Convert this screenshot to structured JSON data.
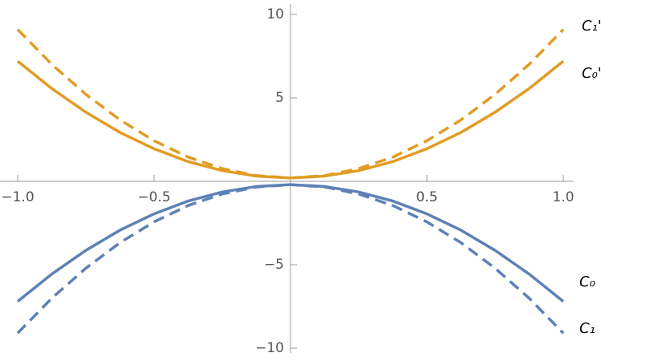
{
  "chart_data": {
    "type": "line",
    "x": [
      -1,
      -0.875,
      -0.75,
      -0.625,
      -0.5,
      -0.375,
      -0.25,
      -0.125,
      0,
      0.125,
      0.25,
      0.375,
      0.5,
      0.625,
      0.75,
      0.875,
      1
    ],
    "series": [
      {
        "name": "C₁'",
        "color": "#e19c24",
        "dashed": true,
        "values": [
          9.1,
          7.01,
          5.21,
          3.68,
          2.43,
          1.45,
          0.76,
          0.34,
          0.2,
          0.34,
          0.76,
          1.45,
          2.43,
          3.68,
          5.21,
          7.01,
          9.1
        ]
      },
      {
        "name": "C₀'",
        "color": "#e19c24",
        "dashed": false,
        "values": [
          7.2,
          5.56,
          4.14,
          2.93,
          1.95,
          1.18,
          0.64,
          0.31,
          0.2,
          0.31,
          0.64,
          1.18,
          1.95,
          2.93,
          4.14,
          5.56,
          7.2
        ]
      },
      {
        "name": "C₀",
        "color": "#5e81b5",
        "dashed": false,
        "values": [
          -7.2,
          -5.56,
          -4.14,
          -2.93,
          -1.95,
          -1.18,
          -0.64,
          -0.31,
          -0.2,
          -0.31,
          -0.64,
          -1.18,
          -1.95,
          -2.93,
          -4.14,
          -5.56,
          -7.2
        ]
      },
      {
        "name": "C₁",
        "color": "#5e81b5",
        "dashed": true,
        "values": [
          -9.1,
          -7.01,
          -5.21,
          -3.68,
          -2.43,
          -1.45,
          -0.76,
          -0.34,
          -0.2,
          -0.34,
          -0.76,
          -1.45,
          -2.43,
          -3.68,
          -5.21,
          -7.01,
          -9.1
        ]
      }
    ],
    "xlim": [
      -1,
      1
    ],
    "ylim": [
      -10,
      10
    ],
    "xticks": [
      {
        "value": -1,
        "label": "−1.0"
      },
      {
        "value": -0.5,
        "label": "−0.5"
      },
      0.5,
      {
        "value": 1,
        "label": "1.0"
      }
    ],
    "yticks": [
      {
        "value": -10,
        "label": "−10"
      },
      {
        "value": -5,
        "label": "−5"
      },
      5,
      10
    ]
  }
}
